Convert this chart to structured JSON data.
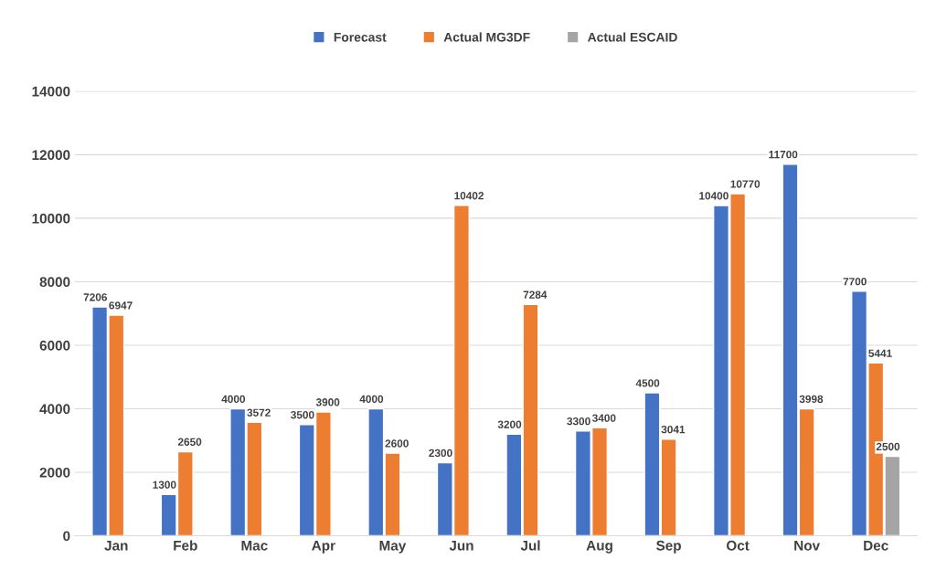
{
  "chart_data": {
    "type": "bar",
    "categories": [
      "Jan",
      "Feb",
      "Mac",
      "Apr",
      "May",
      "Jun",
      "Jul",
      "Aug",
      "Sep",
      "Oct",
      "Nov",
      "Dec"
    ],
    "series": [
      {
        "name": "Forecast",
        "color": "#4472c4",
        "values": [
          7206,
          1300,
          4000,
          3500,
          4000,
          2300,
          3200,
          3300,
          4500,
          10400,
          11700,
          7700
        ]
      },
      {
        "name": "Actual MG3DF",
        "color": "#ed7d31",
        "values": [
          6947,
          2650,
          3572,
          3900,
          2600,
          10402,
          7284,
          3400,
          3041,
          10770,
          3998,
          5441
        ]
      },
      {
        "name": "Actual ESCAID",
        "color": "#a5a5a5",
        "values": [
          null,
          null,
          null,
          null,
          null,
          null,
          null,
          null,
          null,
          null,
          null,
          2500
        ]
      }
    ],
    "ylim": [
      0,
      14000
    ],
    "yticks": [
      0,
      2000,
      4000,
      6000,
      8000,
      10000,
      12000,
      14000
    ],
    "grid": "y",
    "legend": "top",
    "data_labels": true
  }
}
